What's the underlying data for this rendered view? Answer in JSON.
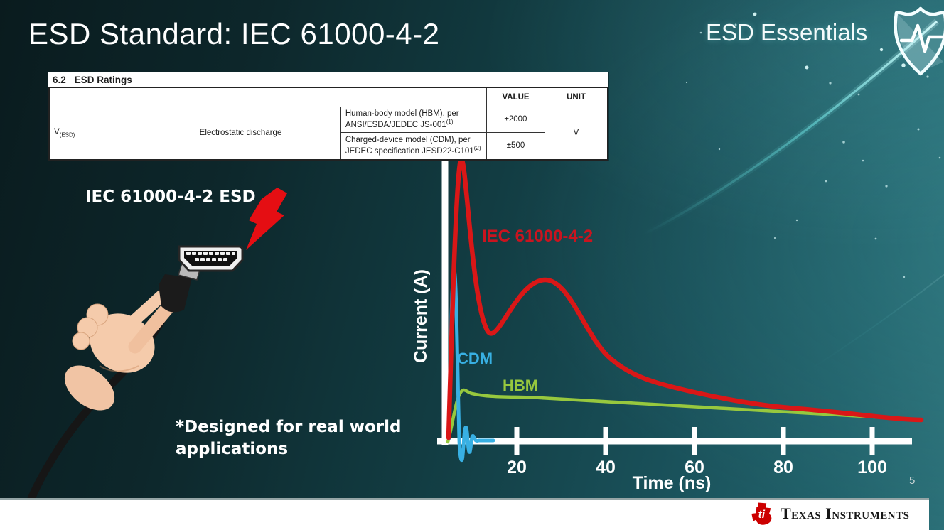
{
  "slide": {
    "title": "ESD Standard: IEC 61000-4-2",
    "brand": "ESD Essentials",
    "page_number": "5",
    "footer": {
      "logo_text": "Texas Instruments"
    },
    "colors": {
      "accent_red": "#d91717",
      "accent_blue": "#38b0e3",
      "accent_green": "#97c83e",
      "background_dark_teal": "#0b1e21",
      "background_light_teal": "#2b6f77",
      "footer_bg": "#ffffff"
    }
  },
  "ratings_table": {
    "caption_number": "6.2",
    "caption_title": "ESD Ratings",
    "headers": {
      "value": "VALUE",
      "unit": "UNIT"
    },
    "parameter": {
      "symbol": "V",
      "subscript": "(ESD)",
      "name": "Electrostatic discharge"
    },
    "rows": [
      {
        "description": "Human-body model (HBM), per ANSI/ESDA/JEDEC JS-001",
        "footnote_ref": "(1)",
        "value": "±2000"
      },
      {
        "description": "Charged-device model (CDM), per JEDEC specification JESD22-C101",
        "footnote_ref": "(2)",
        "value": "±500"
      }
    ],
    "unit": "V"
  },
  "illustration": {
    "label": "IEC 61000-4-2 ESD",
    "footnote_line1": "*Designed for real world",
    "footnote_line2": "applications",
    "icons": [
      "lightning-bolt-icon",
      "hdmi-connector-icon",
      "hand-holding-cable-illustration",
      "shield-pulse-icon",
      "ti-logo-icon"
    ]
  },
  "chart_data": {
    "type": "line",
    "title": "",
    "xlabel": "Time (ns)",
    "ylabel": "Current (A)",
    "x_ticks": [
      20,
      40,
      60,
      80,
      100
    ],
    "xlim": [
      0,
      112
    ],
    "ylim": [
      -0.1,
      1.05
    ],
    "y_scale_note": "no y tick values shown; amplitudes relative to IEC 61000-4-2 first peak = 1.0",
    "grid": false,
    "legend_position": "inline labels beside curves",
    "series": [
      {
        "name": "IEC 61000-4-2",
        "color": "#d91717",
        "x": [
          0,
          0.5,
          3,
          5,
          8,
          12,
          18,
          24,
          28,
          34,
          40,
          50,
          60,
          70,
          80,
          90,
          100,
          108
        ],
        "y": [
          0,
          1.0,
          0.55,
          0.4,
          0.38,
          0.4,
          0.5,
          0.565,
          0.57,
          0.5,
          0.38,
          0.29,
          0.21,
          0.16,
          0.125,
          0.1,
          0.085,
          0.075
        ]
      },
      {
        "name": "CDM",
        "color": "#38b0e3",
        "x": [
          0,
          1,
          2.5,
          3.5,
          4.5,
          5.5,
          6.5,
          8,
          12
        ],
        "y": [
          0,
          0.6,
          -0.08,
          0.05,
          -0.045,
          0.02,
          -0.01,
          0.0,
          0.0
        ]
      },
      {
        "name": "HBM",
        "color": "#97c83e",
        "x": [
          0,
          3,
          5,
          10,
          20,
          40,
          60,
          80,
          100,
          108
        ],
        "y": [
          0,
          0.17,
          0.18,
          0.165,
          0.155,
          0.135,
          0.115,
          0.095,
          0.08,
          0.075
        ]
      }
    ]
  }
}
